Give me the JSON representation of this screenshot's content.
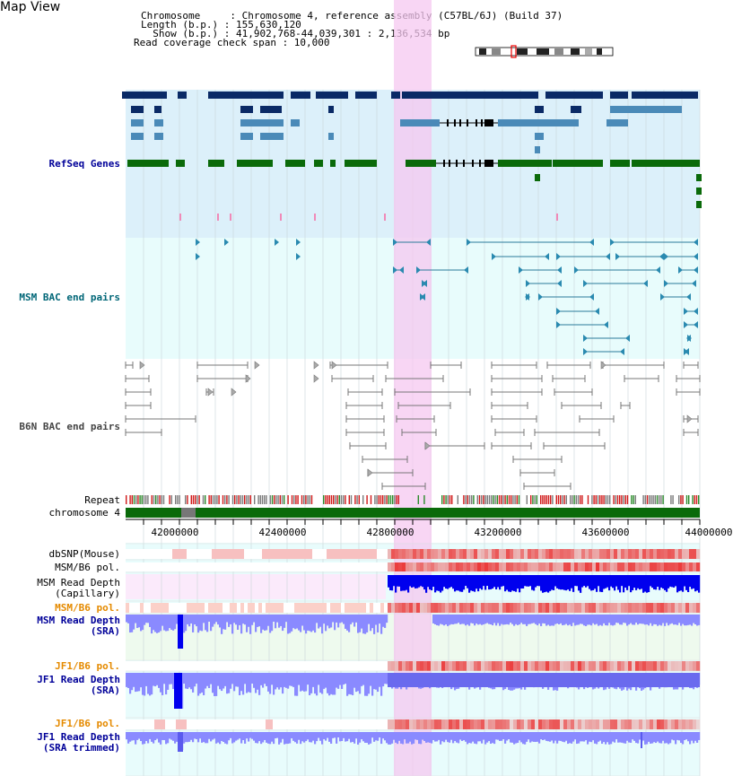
{
  "header": {
    "title": "Map View",
    "info_lines": [
      "Chromosome     : Chromosome 4, reference assembly (C57BL/6J) (Build 37)",
      "Length (b.p.) : 155,630,120",
      "  Show (b.p.) : 41,902,768-44,039,301 : 2,136,534 bp",
      "Read coverage check span : 10,000"
    ]
  },
  "tracks": {
    "refseq": "RefSeq Genes",
    "msm_bac": "MSM BAC end pairs",
    "b6n_bac": "B6N BAC end pairs",
    "repeat": "Repeat",
    "chromosome": "chromosome 4",
    "dbsnp": "dbSNP(Mouse)",
    "msm_b6_pol_1": "MSM/B6 pol.",
    "msm_depth_cap_1": "MSM Read Depth",
    "msm_depth_cap_2": "(Capillary)",
    "msm_b6_pol_2": "MSM/B6 pol.",
    "msm_depth_sra_1": "MSM Read Depth",
    "msm_depth_sra_2": "(SRA)",
    "jf1_b6_pol_1": "JF1/B6 pol.",
    "jf1_depth_sra_1": "JF1 Read Depth",
    "jf1_depth_sra_2": "(SRA)",
    "jf1_b6_pol_2": "JF1/B6 pol.",
    "jf1_depth_trim_1": "JF1 Read Depth",
    "jf1_depth_trim_2": "(SRA trimmed)"
  },
  "axis": {
    "ticks": [
      "42000000",
      "42400000",
      "42800000",
      "43200000",
      "43600000",
      "44000000"
    ]
  },
  "colors": {
    "refseq_bg": "#dcf0fa",
    "bac_bg": "#e8fcfc",
    "highlight": "#f5c8f0",
    "navy": "#0a2a66",
    "steel": "#4a8ab8",
    "green": "#0a6a0a",
    "depth_blue": "#0000ee",
    "depth_light": "#8a8aff",
    "pol_red": "#e03030"
  }
}
